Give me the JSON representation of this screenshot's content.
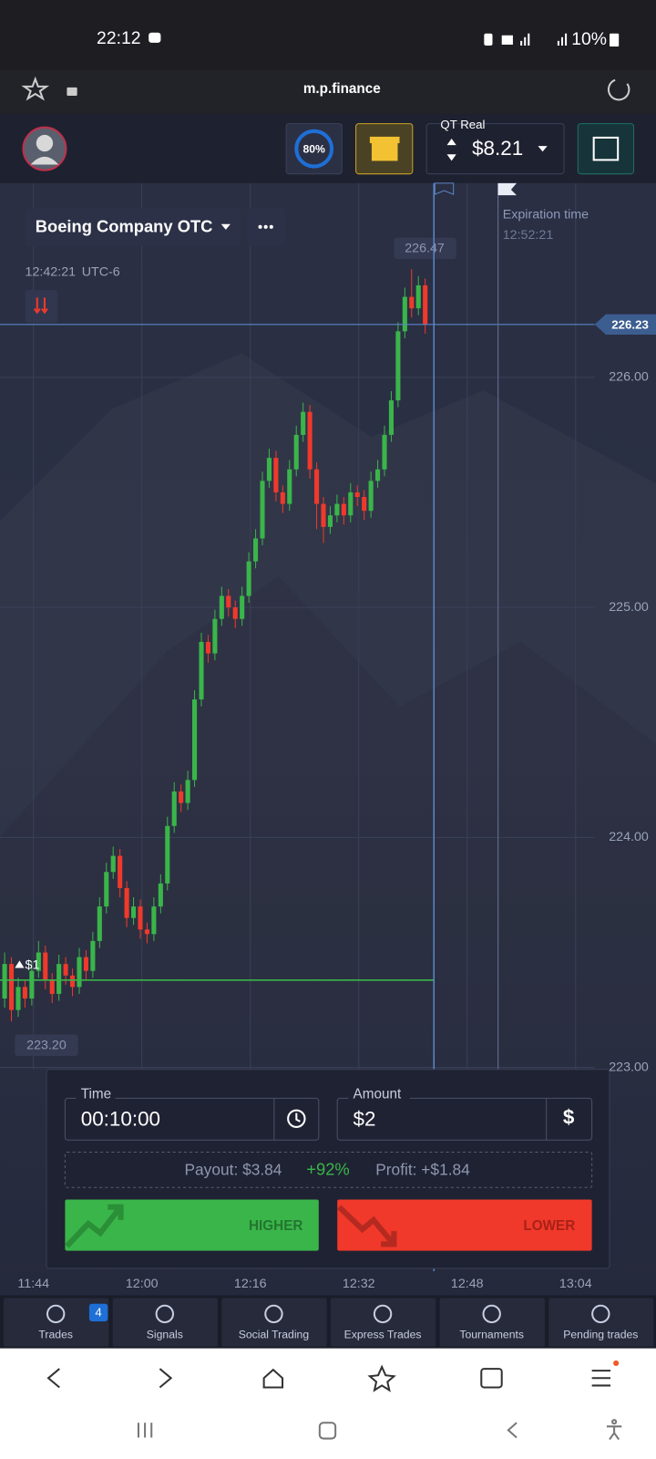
{
  "status_bar": {
    "time": "22:12",
    "battery": "10%"
  },
  "browser": {
    "url": "m.p.finance"
  },
  "header": {
    "progress": "80%",
    "account_type": "QT Real",
    "balance": "$8.21"
  },
  "asset": {
    "name": "Boeing Company OTC",
    "time": "12:42:21",
    "timezone": "UTC-6"
  },
  "chart_data": {
    "type": "candlestick",
    "candles": [
      [
        223.3,
        223.5,
        223.26,
        223.45
      ],
      [
        223.45,
        223.48,
        223.2,
        223.25
      ],
      [
        223.25,
        223.39,
        223.22,
        223.35
      ],
      [
        223.35,
        223.38,
        223.26,
        223.3
      ],
      [
        223.3,
        223.46,
        223.27,
        223.42
      ],
      [
        223.42,
        223.55,
        223.39,
        223.5
      ],
      [
        223.5,
        223.53,
        223.34,
        223.38
      ],
      [
        223.38,
        223.41,
        223.28,
        223.32
      ],
      [
        223.32,
        223.49,
        223.29,
        223.45
      ],
      [
        223.45,
        223.48,
        223.36,
        223.4
      ],
      [
        223.4,
        223.43,
        223.31,
        223.35
      ],
      [
        223.35,
        223.52,
        223.32,
        223.48
      ],
      [
        223.48,
        223.51,
        223.38,
        223.42
      ],
      [
        223.42,
        223.59,
        223.39,
        223.55
      ],
      [
        223.55,
        223.74,
        223.52,
        223.7
      ],
      [
        223.7,
        223.89,
        223.67,
        223.85
      ],
      [
        223.85,
        223.96,
        223.82,
        223.92
      ],
      [
        223.92,
        223.95,
        223.74,
        223.78
      ],
      [
        223.78,
        223.81,
        223.61,
        223.65
      ],
      [
        223.65,
        223.74,
        223.62,
        223.7
      ],
      [
        223.7,
        223.73,
        223.56,
        223.6
      ],
      [
        223.6,
        223.63,
        223.54,
        223.58
      ],
      [
        223.58,
        223.74,
        223.55,
        223.7
      ],
      [
        223.7,
        223.84,
        223.67,
        223.8
      ],
      [
        223.8,
        224.09,
        223.77,
        224.05
      ],
      [
        224.05,
        224.24,
        224.02,
        224.2
      ],
      [
        224.2,
        224.23,
        224.11,
        224.15
      ],
      [
        224.15,
        224.29,
        224.12,
        224.25
      ],
      [
        224.25,
        224.64,
        224.22,
        224.6
      ],
      [
        224.6,
        224.89,
        224.57,
        224.85
      ],
      [
        224.85,
        224.88,
        224.76,
        224.8
      ],
      [
        224.8,
        224.99,
        224.77,
        224.95
      ],
      [
        224.95,
        225.09,
        224.92,
        225.05
      ],
      [
        225.05,
        225.08,
        224.96,
        225.0
      ],
      [
        225.0,
        225.03,
        224.91,
        224.95
      ],
      [
        224.95,
        225.09,
        224.92,
        225.05
      ],
      [
        225.05,
        225.24,
        225.02,
        225.2
      ],
      [
        225.2,
        225.34,
        225.17,
        225.3
      ],
      [
        225.3,
        225.59,
        225.27,
        225.55
      ],
      [
        225.55,
        225.69,
        225.52,
        225.65
      ],
      [
        225.65,
        225.68,
        225.46,
        225.5
      ],
      [
        225.5,
        225.53,
        225.41,
        225.45
      ],
      [
        225.45,
        225.64,
        225.42,
        225.6
      ],
      [
        225.6,
        225.79,
        225.57,
        225.75
      ],
      [
        225.75,
        225.89,
        225.72,
        225.85
      ],
      [
        225.85,
        225.88,
        225.56,
        225.6
      ],
      [
        225.6,
        225.63,
        225.34,
        225.45
      ],
      [
        225.45,
        225.48,
        225.28,
        225.35
      ],
      [
        225.35,
        225.44,
        225.32,
        225.4
      ],
      [
        225.4,
        225.49,
        225.37,
        225.45
      ],
      [
        225.45,
        225.48,
        225.36,
        225.4
      ],
      [
        225.4,
        225.54,
        225.37,
        225.5
      ],
      [
        225.5,
        225.53,
        225.44,
        225.48
      ],
      [
        225.48,
        225.51,
        225.38,
        225.42
      ],
      [
        225.42,
        225.59,
        225.39,
        225.55
      ],
      [
        225.55,
        225.64,
        225.52,
        225.6
      ],
      [
        225.6,
        225.79,
        225.57,
        225.75
      ],
      [
        225.75,
        225.94,
        225.72,
        225.9
      ],
      [
        225.9,
        226.24,
        225.87,
        226.2
      ],
      [
        226.2,
        226.39,
        226.17,
        226.35
      ],
      [
        226.35,
        226.47,
        226.26,
        226.3
      ],
      [
        226.3,
        226.44,
        226.27,
        226.4
      ],
      [
        226.4,
        226.43,
        226.19,
        226.23
      ]
    ],
    "ylim": [
      223,
      226.84
    ],
    "yticks": [
      {
        "value": 223,
        "label": "223.00"
      },
      {
        "value": 224,
        "label": "224.00"
      },
      {
        "value": 225,
        "label": "225.00"
      },
      {
        "value": 226,
        "label": "226.00"
      }
    ],
    "current_price": 226.23,
    "max_label": 226.47,
    "min_label": {
      "value": 223.2,
      "label": "223.20"
    },
    "time_labels": [
      "11:44",
      "12:00",
      "12:16",
      "12:32",
      "12:48",
      "13:04"
    ],
    "expiration_label": "Expiration time",
    "expiration_time": "12:52:21",
    "trade": {
      "label": "$1",
      "open_price": 223.38
    },
    "grid": true,
    "up_color": "#3ab54a",
    "down_color": "#f0392b"
  },
  "trade_panel": {
    "time_label": "Time",
    "time": "00:10:00",
    "amount_label": "Amount",
    "amount": "$2",
    "payout": "Payout: $3.84",
    "payout_percent": "+92%",
    "profit": "Profit: +$1.84",
    "higher": "HIGHER",
    "lower": "LOWER"
  },
  "nav": {
    "items": [
      {
        "label": "Trades",
        "badge": 4
      },
      {
        "label": "Signals"
      },
      {
        "label": "Social Trading"
      },
      {
        "label": "Express Trades"
      },
      {
        "label": "Tournaments"
      },
      {
        "label": "Pending trades"
      }
    ]
  }
}
